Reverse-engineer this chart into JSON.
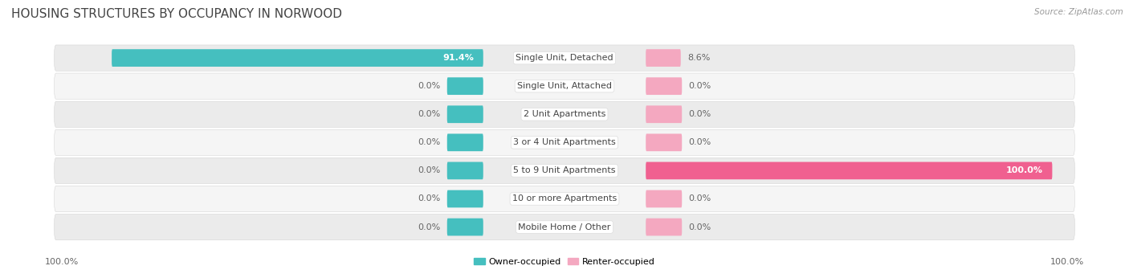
{
  "title": "HOUSING STRUCTURES BY OCCUPANCY IN NORWOOD",
  "source": "Source: ZipAtlas.com",
  "categories": [
    "Single Unit, Detached",
    "Single Unit, Attached",
    "2 Unit Apartments",
    "3 or 4 Unit Apartments",
    "5 to 9 Unit Apartments",
    "10 or more Apartments",
    "Mobile Home / Other"
  ],
  "owner_values": [
    91.4,
    0.0,
    0.0,
    0.0,
    0.0,
    0.0,
    0.0
  ],
  "renter_values": [
    8.6,
    0.0,
    0.0,
    0.0,
    100.0,
    0.0,
    0.0
  ],
  "owner_color": "#45BFBF",
  "renter_color_small": "#F4A8C0",
  "renter_color_full": "#F06090",
  "owner_label": "Owner-occupied",
  "renter_label": "Renter-occupied",
  "row_bg_even": "#ebebeb",
  "row_bg_odd": "#f5f5f5",
  "title_fontsize": 11,
  "bar_label_fontsize": 8,
  "cat_label_fontsize": 8,
  "left_axis_label": "100.0%",
  "right_axis_label": "100.0%"
}
